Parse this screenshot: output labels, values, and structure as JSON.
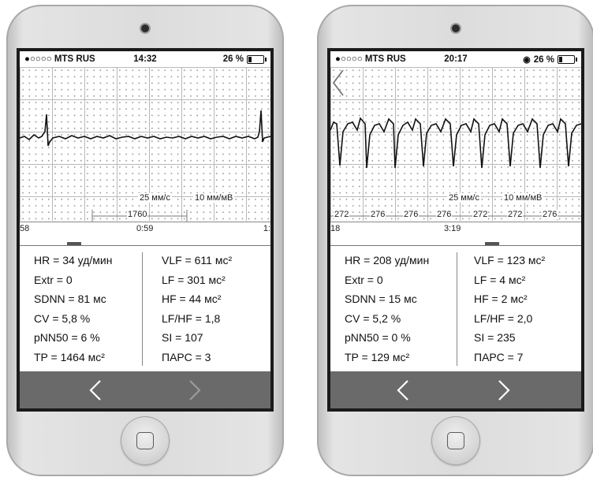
{
  "phones": [
    {
      "status": {
        "carrier": "●○○○○ MTS RUS",
        "time": "14:32",
        "battery": "26 %",
        "battery_level": 0.26
      },
      "scale": {
        "speed": "25 мм/с",
        "amplitude": "10 мм/мВ"
      },
      "rr_intervals": [
        "1760"
      ],
      "timeline": {
        "left": "58",
        "center": "0:59",
        "right": "1:"
      },
      "metrics_left": [
        {
          "label": "HR =",
          "value": "34",
          "unit": "уд/мин"
        },
        {
          "label": "Extr =",
          "value": "0",
          "unit": ""
        },
        {
          "label": "SDNN =",
          "value": "81",
          "unit": "мс"
        },
        {
          "label": "CV =",
          "value": "5,8",
          "unit": "%"
        },
        {
          "label": "pNN50 =",
          "value": "6",
          "unit": "%"
        },
        {
          "label": "TP =",
          "value": "1464",
          "unit": "мс²"
        }
      ],
      "metrics_right": [
        {
          "label": "VLF =",
          "value": "611",
          "unit": "мс²"
        },
        {
          "label": "LF =",
          "value": "301",
          "unit": "мс²"
        },
        {
          "label": "HF =",
          "value": "44",
          "unit": "мс²"
        },
        {
          "label": "LF/HF =",
          "value": "1,8",
          "unit": ""
        },
        {
          "label": "SI =",
          "value": "107",
          "unit": ""
        },
        {
          "label": "ПАРС =",
          "value": "3",
          "unit": ""
        }
      ],
      "nav": {
        "prev": "chevron-left-icon",
        "next": "chevron-right-icon"
      }
    },
    {
      "status": {
        "carrier": "●○○○○ MTS RUS",
        "time": "20:17",
        "battery": "26 %",
        "battery_level": 0.26
      },
      "scale": {
        "speed": "25 мм/с",
        "amplitude": "10 мм/мВ"
      },
      "rr_intervals": [
        "272",
        "276",
        "276",
        "276",
        "272",
        "272",
        "276"
      ],
      "timeline": {
        "left": "18",
        "center": "3:19",
        "right": ""
      },
      "metrics_left": [
        {
          "label": "HR =",
          "value": "208",
          "unit": "уд/мин"
        },
        {
          "label": "Extr =",
          "value": "0",
          "unit": ""
        },
        {
          "label": "SDNN =",
          "value": "15",
          "unit": "мс"
        },
        {
          "label": "CV =",
          "value": "5,2",
          "unit": "%"
        },
        {
          "label": "pNN50 =",
          "value": "0",
          "unit": "%"
        },
        {
          "label": "TP =",
          "value": "129",
          "unit": "мс²"
        }
      ],
      "metrics_right": [
        {
          "label": "VLF =",
          "value": "123",
          "unit": "мс²"
        },
        {
          "label": "LF =",
          "value": "4",
          "unit": "мс²"
        },
        {
          "label": "HF =",
          "value": "2",
          "unit": "мс²"
        },
        {
          "label": "LF/HF =",
          "value": "2,0",
          "unit": ""
        },
        {
          "label": "SI =",
          "value": "235",
          "unit": ""
        },
        {
          "label": "ПАРС =",
          "value": "7",
          "unit": ""
        }
      ],
      "nav": {
        "back": "chevron-left-icon",
        "prev": "chevron-left-icon",
        "next": "chevron-right-icon"
      }
    }
  ],
  "colors": {
    "nav_bar": "#6a6a6a",
    "grid": "#b8b8b8",
    "trace": "#111111"
  }
}
